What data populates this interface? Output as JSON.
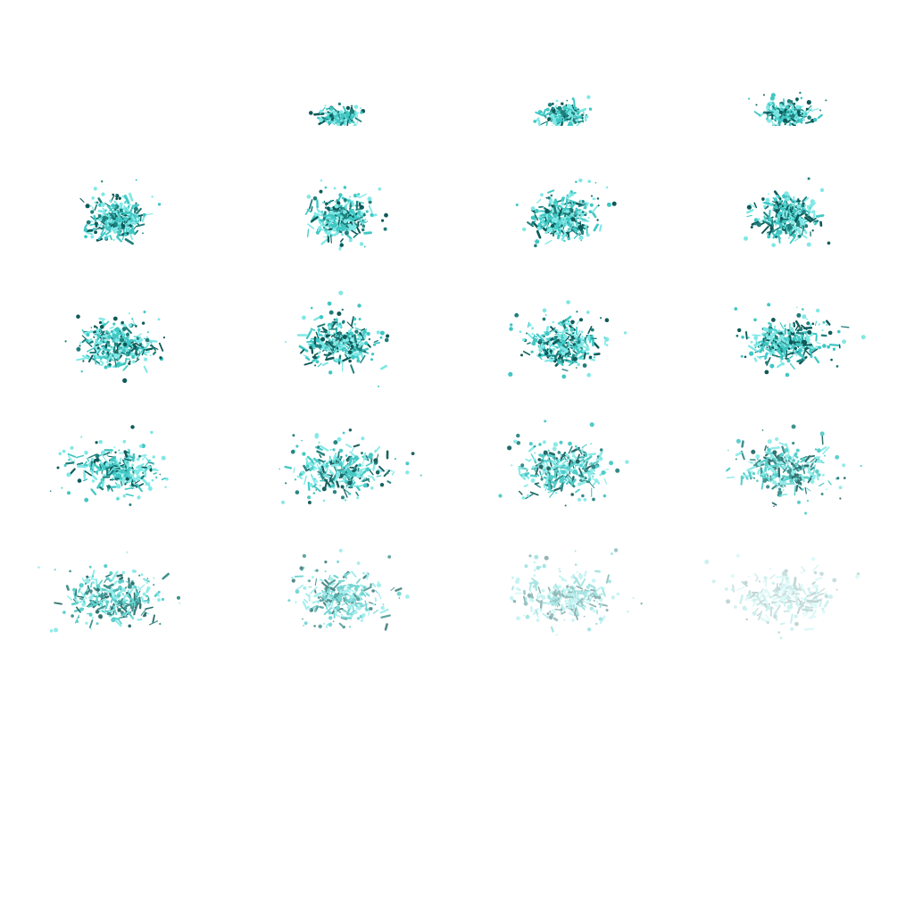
{
  "sprite_sheet": {
    "name": "water-splash-particles",
    "background": "#ffffff",
    "palette": {
      "light": "#7fe8e6",
      "mid": "#3fc7c4",
      "dark": "#1f7f7c",
      "deep": "#0e5a58"
    },
    "grid": {
      "columns": 4,
      "rows": 5
    },
    "frames": [
      {
        "index": 0,
        "visible": false,
        "spread": 0.0,
        "density": 0.0,
        "opacity": 0.0
      },
      {
        "index": 1,
        "visible": true,
        "spread": 0.25,
        "density": 0.55,
        "opacity": 1.0,
        "clip": "top"
      },
      {
        "index": 2,
        "visible": true,
        "spread": 0.33,
        "density": 0.75,
        "opacity": 1.0,
        "clip": "top"
      },
      {
        "index": 3,
        "visible": true,
        "spread": 0.42,
        "density": 0.9,
        "opacity": 1.0,
        "clip": "top"
      },
      {
        "index": 4,
        "visible": true,
        "spread": 0.48,
        "density": 1.0,
        "opacity": 1.0
      },
      {
        "index": 5,
        "visible": true,
        "spread": 0.52,
        "density": 1.0,
        "opacity": 1.0
      },
      {
        "index": 6,
        "visible": true,
        "spread": 0.56,
        "density": 1.0,
        "opacity": 1.0
      },
      {
        "index": 7,
        "visible": true,
        "spread": 0.6,
        "density": 1.0,
        "opacity": 1.0
      },
      {
        "index": 8,
        "visible": true,
        "spread": 0.66,
        "density": 0.95,
        "opacity": 1.0
      },
      {
        "index": 9,
        "visible": true,
        "spread": 0.7,
        "density": 0.9,
        "opacity": 1.0
      },
      {
        "index": 10,
        "visible": true,
        "spread": 0.74,
        "density": 0.9,
        "opacity": 1.0
      },
      {
        "index": 11,
        "visible": true,
        "spread": 0.78,
        "density": 0.88,
        "opacity": 1.0
      },
      {
        "index": 12,
        "visible": true,
        "spread": 0.82,
        "density": 0.85,
        "opacity": 1.0
      },
      {
        "index": 13,
        "visible": true,
        "spread": 0.85,
        "density": 0.82,
        "opacity": 0.95
      },
      {
        "index": 14,
        "visible": true,
        "spread": 0.88,
        "density": 0.8,
        "opacity": 0.9
      },
      {
        "index": 15,
        "visible": true,
        "spread": 0.9,
        "density": 0.8,
        "opacity": 0.85
      },
      {
        "index": 16,
        "visible": true,
        "spread": 0.92,
        "density": 0.78,
        "opacity": 0.85
      },
      {
        "index": 17,
        "visible": true,
        "spread": 0.94,
        "density": 0.72,
        "opacity": 0.7
      },
      {
        "index": 18,
        "visible": true,
        "spread": 0.96,
        "density": 0.65,
        "opacity": 0.45
      },
      {
        "index": 19,
        "visible": true,
        "spread": 0.98,
        "density": 0.55,
        "opacity": 0.25
      }
    ]
  }
}
